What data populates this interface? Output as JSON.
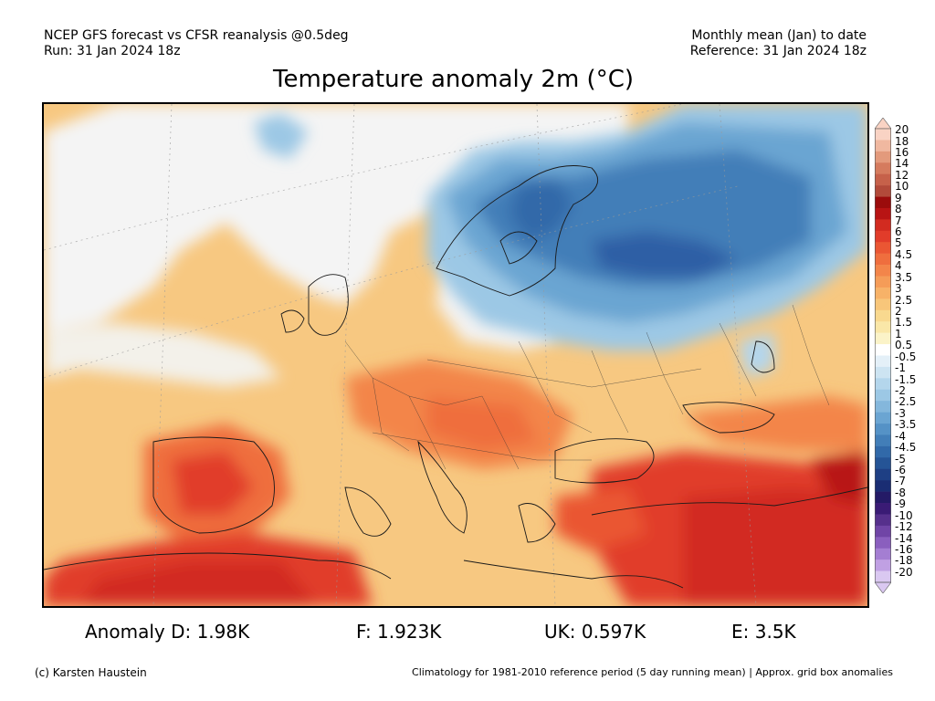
{
  "header": {
    "line1_left": "NCEP GFS forecast vs CFSR reanalysis @0.5deg",
    "line2_left": "Run: 31 Jan 2024 18z",
    "line1_right": "Monthly mean (Jan) to date",
    "line2_right": "Reference: 31 Jan 2024 18z"
  },
  "title": "Temperature anomaly 2m (°C)",
  "colorbar": {
    "labels": [
      "20",
      "18",
      "16",
      "14",
      "12",
      "10",
      "9",
      "8",
      "7",
      "6",
      "5",
      "4.5",
      "4",
      "3.5",
      "3",
      "2.5",
      "2",
      "1.5",
      "1",
      "0.5",
      "-0.5",
      "-1",
      "-1.5",
      "-2",
      "-2.5",
      "-3",
      "-3.5",
      "-4",
      "-4.5",
      "-5",
      "-6",
      "-7",
      "-8",
      "-9",
      "-10",
      "-12",
      "-14",
      "-16",
      "-18",
      "-20"
    ],
    "colors": [
      "#f9d3c4",
      "#f0b8a0",
      "#e39a7c",
      "#d57b5e",
      "#c6614a",
      "#b24a3a",
      "#9b0c0c",
      "#b81414",
      "#d22b20",
      "#e13c2a",
      "#ea5633",
      "#ef6e3e",
      "#f3854a",
      "#f59c58",
      "#f7b268",
      "#f8c67a",
      "#f9d98f",
      "#fae7a8",
      "#fbf3c8",
      "#ffffff",
      "#e4f0f8",
      "#cde4f2",
      "#b4d6ec",
      "#9cc8e5",
      "#84b7dc",
      "#6ba5d2",
      "#5592c6",
      "#427eb8",
      "#3169a9",
      "#255496",
      "#1e3f84",
      "#1a2d73",
      "#241a66",
      "#3a1b75",
      "#56308c",
      "#7045a6",
      "#8a5fbe",
      "#a47ed2",
      "#c0a0e3",
      "#dac8f1"
    ]
  },
  "stats": [
    {
      "label": "Anomaly D: 1.98K"
    },
    {
      "label": "F: 1.923K"
    },
    {
      "label": "UK: 0.597K"
    },
    {
      "label": "E: 3.5K"
    }
  ],
  "footer": {
    "left": "(c) Karsten Haustein",
    "right": "Climatology for 1981-2010 reference period (5 day running mean) | Approx. grid box anomalies"
  }
}
